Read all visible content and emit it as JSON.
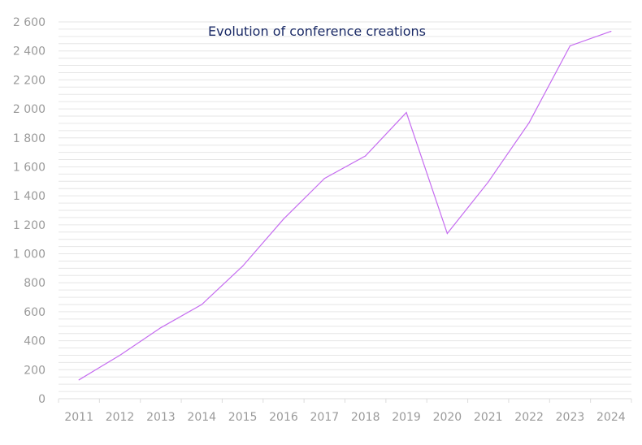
{
  "chart_data": {
    "type": "line",
    "title": "Evolution of conference creations",
    "xlabel": "",
    "ylabel": "",
    "categories": [
      "2011",
      "2012",
      "2013",
      "2014",
      "2015",
      "2016",
      "2017",
      "2018",
      "2019",
      "2020",
      "2021",
      "2022",
      "2023",
      "2024"
    ],
    "series": [
      {
        "values": [
          130,
          300,
          490,
          650,
          915,
          1240,
          1520,
          1675,
          1975,
          1140,
          1495,
          1905,
          2435,
          2535
        ],
        "color": "#c56cf0"
      }
    ],
    "ylim": [
      0,
      2600
    ],
    "yticks": [
      0,
      200,
      400,
      600,
      800,
      1000,
      1200,
      1400,
      1600,
      1800,
      2000,
      2200,
      2400,
      2600
    ],
    "ytick_labels": [
      "0",
      "200",
      "400",
      "600",
      "800",
      "1 000",
      "1 200",
      "1 400",
      "1 600",
      "1 800",
      "2 000",
      "2 200",
      "2 400",
      "2 600"
    ],
    "minor_grid_step": 50,
    "grid": true,
    "legend": "none",
    "colors": {
      "title": "#1a2a66",
      "ticks": "#9a9a9a",
      "grid": "#e6e6e6"
    }
  }
}
